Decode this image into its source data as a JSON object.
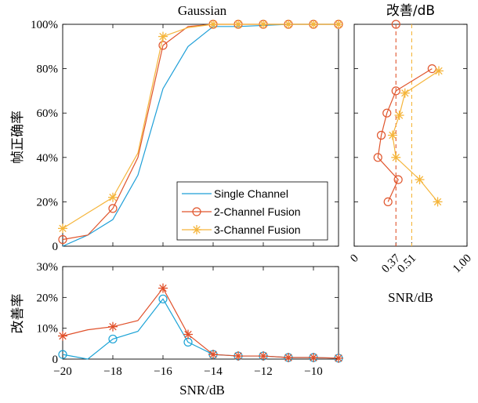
{
  "colors": {
    "single": "#1e9fd8",
    "two": "#e0552c",
    "three": "#f5b53b",
    "axis": "#000000",
    "background": "#ffffff"
  },
  "chart_data": [
    {
      "type": "line",
      "title": "Gaussian",
      "xlabel": "",
      "ylabel": "帧正确率",
      "x": [
        -20,
        -19,
        -18,
        -17,
        -16,
        -15,
        -14,
        -13,
        -12,
        -11,
        -10,
        -9
      ],
      "xlim": [
        -20,
        -9
      ],
      "ylim": [
        0,
        100
      ],
      "y_ticks": [
        "0",
        "20%",
        "40%",
        "60%",
        "80%",
        "100%"
      ],
      "grid": false,
      "legend_position": "bottom-right",
      "series": [
        {
          "name": "Single Channel",
          "marker": "none",
          "values": [
            0,
            5,
            12,
            32,
            71,
            90,
            99,
            99,
            99.5,
            100,
            100,
            100
          ]
        },
        {
          "name": "2-Channel Fusion",
          "marker": "circle",
          "values": [
            3,
            5,
            17,
            40,
            90.5,
            99,
            100,
            100,
            100,
            100,
            100,
            100
          ]
        },
        {
          "name": "3-Channel Fusion",
          "marker": "star",
          "values": [
            8,
            15,
            22,
            42,
            94.5,
            98.5,
            100,
            100,
            100,
            100,
            100,
            100
          ]
        }
      ]
    },
    {
      "type": "line",
      "title": "",
      "xlabel": "SNR/dB",
      "ylabel": "改善率",
      "x": [
        -20,
        -19,
        -18,
        -17,
        -16,
        -15,
        -14,
        -13,
        -12,
        -11,
        -10,
        -9
      ],
      "xlim": [
        -20,
        -9
      ],
      "ylim": [
        0,
        30
      ],
      "x_ticks": [
        "−20",
        "−18",
        "−16",
        "−14",
        "−12",
        "−10"
      ],
      "y_ticks": [
        "0",
        "10%",
        "20%",
        "30%"
      ],
      "series": [
        {
          "name": "2-Channel Fusion",
          "marker": "circle",
          "values": [
            1.5,
            0,
            6.5,
            9,
            19.5,
            5.5,
            1.5,
            1,
            1,
            0.5,
            0.5,
            0.3
          ]
        },
        {
          "name": "3-Channel Fusion",
          "marker": "star",
          "values": [
            7.5,
            9.5,
            10.5,
            12.5,
            23,
            8,
            1.5,
            1,
            1,
            0.5,
            0.5,
            0.3
          ]
        }
      ]
    },
    {
      "type": "line",
      "title": "改善/dB",
      "xlabel": "SNR/dB",
      "ylabel": "",
      "xlim": [
        0,
        1
      ],
      "ylim": [
        0,
        100
      ],
      "x_ticks": [
        "0",
        "0.37",
        "0.51",
        "1.00"
      ],
      "x_tick_values": [
        0,
        0.37,
        0.51,
        1.0
      ],
      "vlines": [
        {
          "series": "2-Channel Fusion",
          "x": 0.37,
          "style": "dashed"
        },
        {
          "series": "3-Channel Fusion",
          "x": 0.51,
          "style": "dashed"
        }
      ],
      "series": [
        {
          "name": "2-Channel Fusion",
          "marker": "circle",
          "points": [
            [
              0.3,
              20
            ],
            [
              0.39,
              30
            ],
            [
              0.21,
              40
            ],
            [
              0.24,
              50
            ],
            [
              0.29,
              60
            ],
            [
              0.37,
              70
            ],
            [
              0.69,
              80
            ],
            [
              0.37,
              100
            ]
          ]
        },
        {
          "name": "3-Channel Fusion",
          "marker": "star",
          "points": [
            [
              0.74,
              20
            ],
            [
              0.58,
              30
            ],
            [
              0.37,
              40
            ],
            [
              0.34,
              50
            ],
            [
              0.4,
              59
            ],
            [
              0.45,
              69
            ],
            [
              0.75,
              79
            ]
          ]
        }
      ]
    }
  ]
}
